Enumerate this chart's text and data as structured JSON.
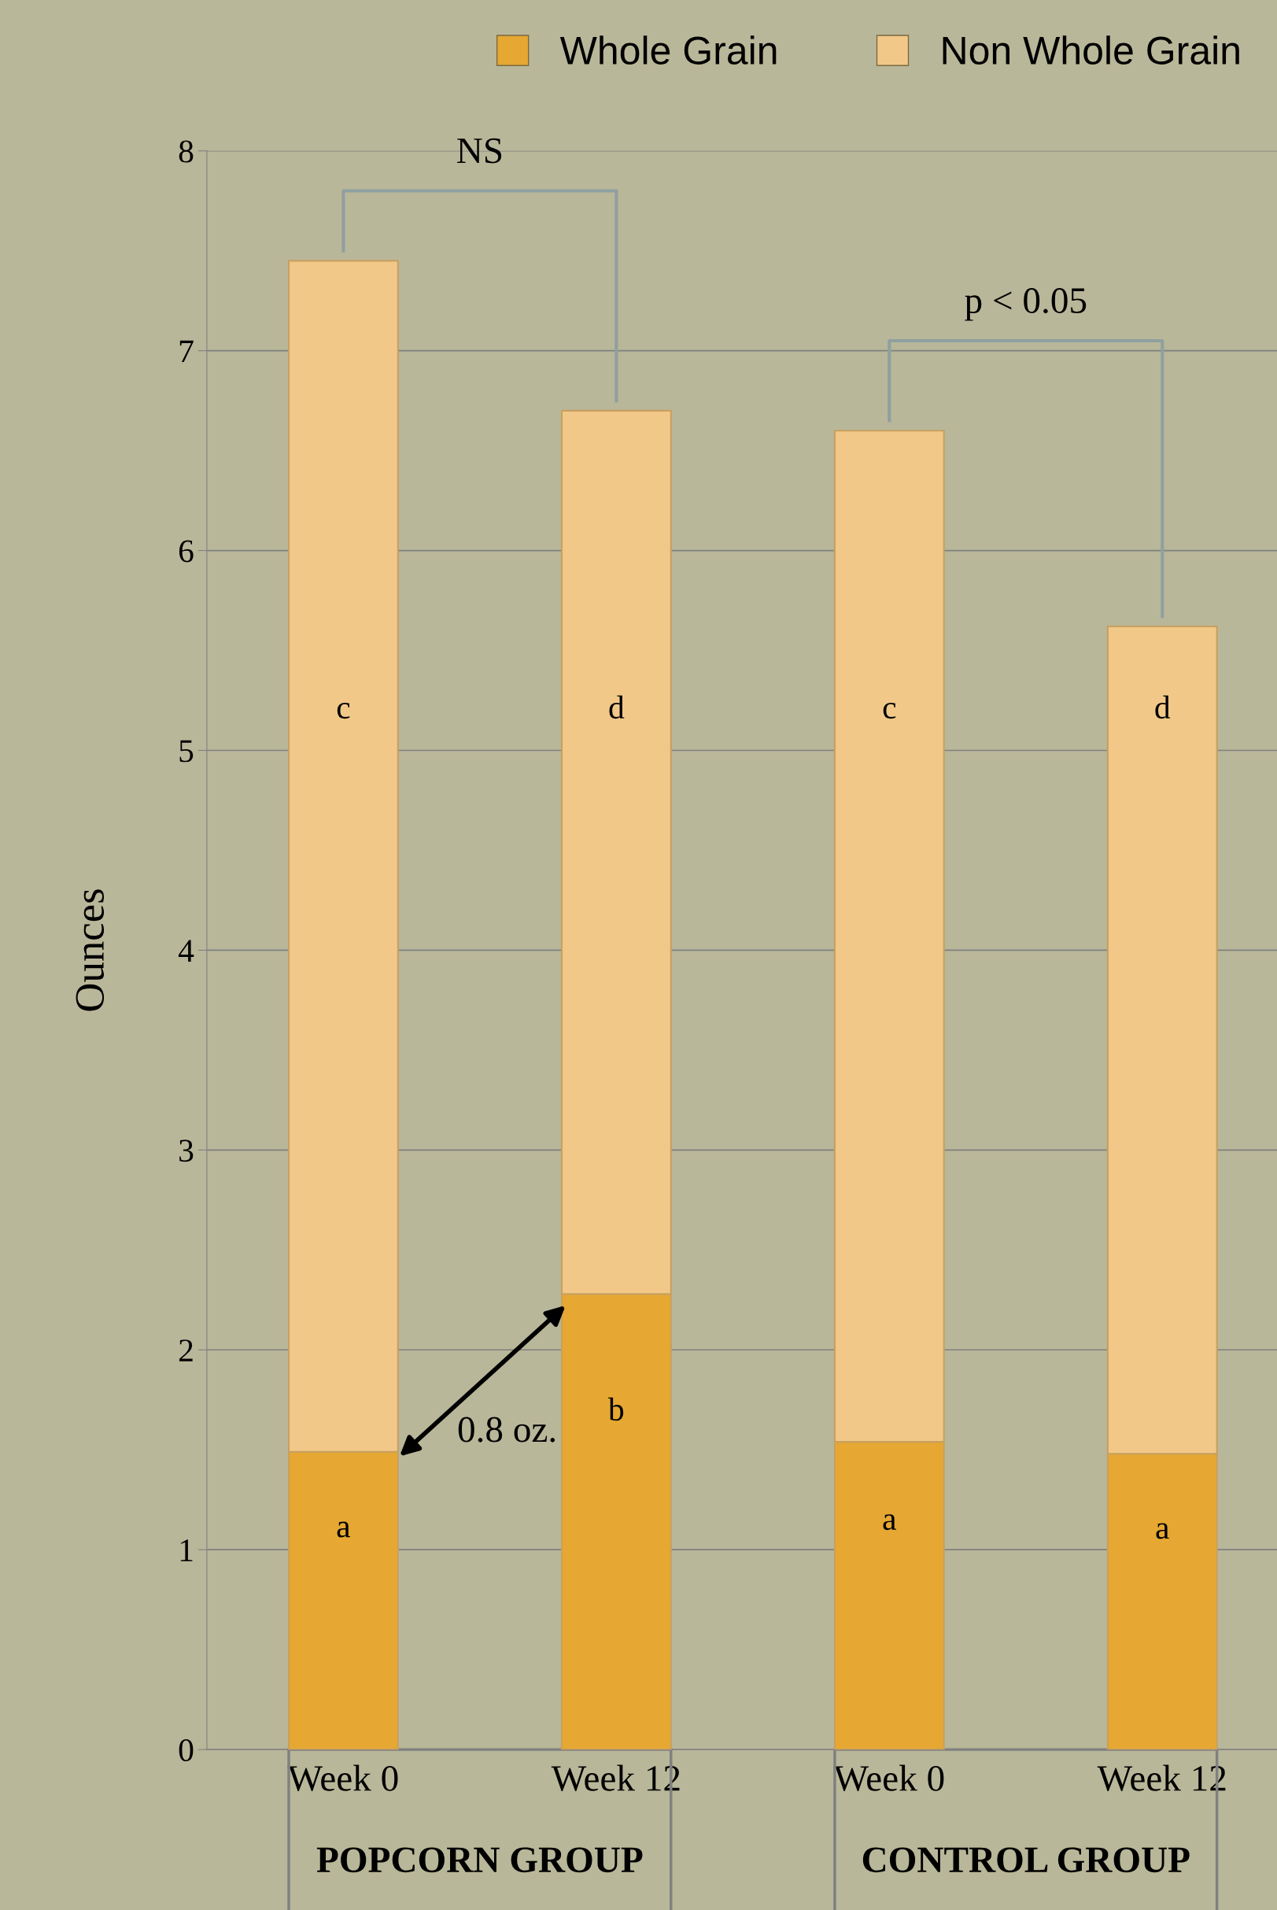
{
  "chart_data": {
    "type": "bar",
    "stacked": true,
    "ylabel": "Ounces",
    "categories": [
      "Week 0",
      "Week 12",
      "Week 0",
      "Week 12"
    ],
    "series": [
      {
        "name": "Whole Grain",
        "color": "#e6a832",
        "values": [
          1.49,
          2.28,
          1.54,
          1.48
        ],
        "value_labels": [
          "a",
          "b",
          "a",
          "a"
        ]
      },
      {
        "name": "Non Whole Grain",
        "color": "#f2c888",
        "values": [
          5.96,
          4.42,
          5.06,
          4.14
        ],
        "value_labels": [
          "c",
          "d",
          "c",
          "d"
        ]
      }
    ],
    "ylim": [
      0,
      8
    ],
    "yticks": [
      0,
      1,
      2,
      3,
      4,
      5,
      6,
      7,
      8
    ],
    "grid": "y",
    "legend": "top right",
    "annotations": [
      "NS",
      "p < 0.05",
      "0.8 oz.",
      "POPCORN GROUP",
      "CONTROL GROUP"
    ]
  }
}
